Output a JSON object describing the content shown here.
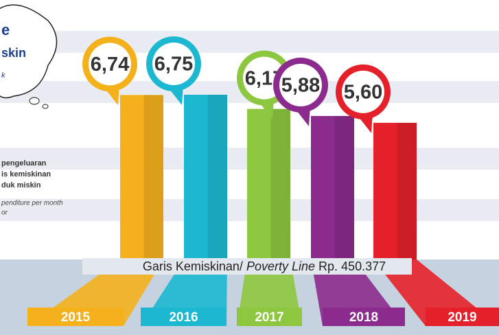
{
  "chart_data": {
    "type": "bar",
    "categories": [
      "2015",
      "2016",
      "2017",
      "2018",
      "2019"
    ],
    "values": [
      6.74,
      6.75,
      6.17,
      5.88,
      5.6
    ],
    "value_labels": [
      "6,74",
      "6,75",
      "6,17",
      "5,88",
      "5,60"
    ],
    "colors": [
      "#f4b11c",
      "#1cb8d2",
      "#8dc63f",
      "#8c2b8e",
      "#e4202a"
    ],
    "bubble_texts": [
      "e",
      "skin",
      "k"
    ],
    "side_texts": [
      "pengeluaran",
      "is kemiskinan",
      "duk miskin"
    ],
    "side_texts_en": [
      "penditure per month",
      "or"
    ],
    "line_label": {
      "text": "Garis Kemiskinan/",
      "italic": "Poverty Line",
      "amount": "Rp. 450.377"
    }
  }
}
